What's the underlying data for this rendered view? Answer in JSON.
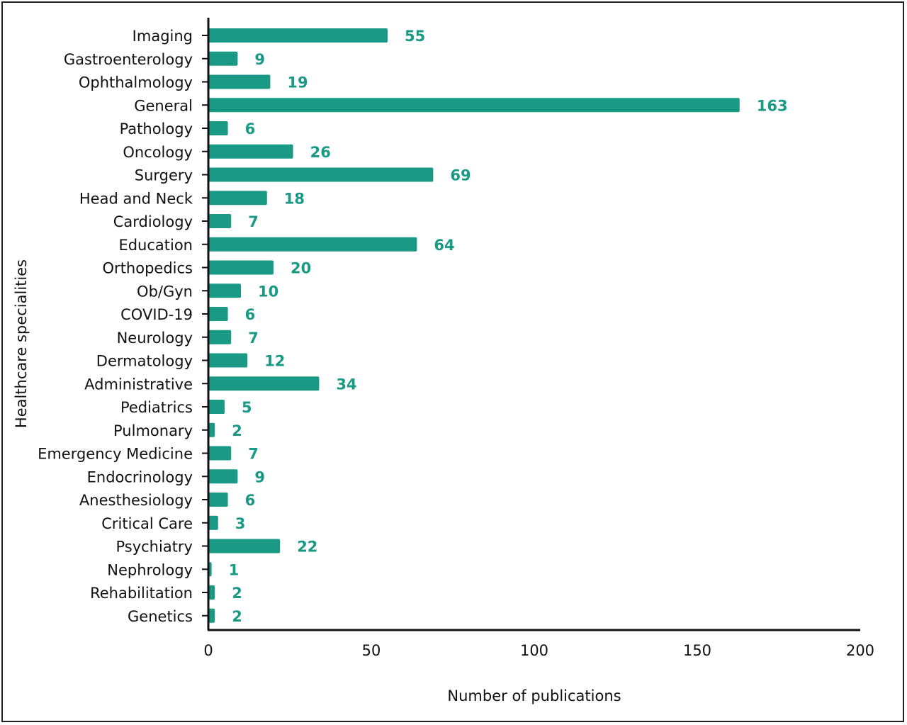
{
  "chart_data": {
    "type": "bar",
    "orientation": "horizontal",
    "title": "",
    "xlabel": "Number of publications",
    "ylabel": "Healthcare specialities",
    "xlim": [
      0,
      200
    ],
    "xticks": [
      0,
      50,
      100,
      150,
      200
    ],
    "grid": false,
    "bar_color": "#1a9985",
    "label_color": "#1a9985",
    "categories": [
      "Imaging",
      "Gastroenterology",
      "Ophthalmology",
      "General",
      "Pathology",
      "Oncology",
      "Surgery",
      "Head and Neck",
      "Cardiology",
      "Education",
      "Orthopedics",
      "Ob/Gyn",
      "COVID-19",
      "Neurology",
      "Dermatology",
      "Administrative",
      "Pediatrics",
      "Pulmonary",
      "Emergency Medicine",
      "Endocrinology",
      "Anesthesiology",
      "Critical Care",
      "Psychiatry",
      "Nephrology",
      "Rehabilitation",
      "Genetics"
    ],
    "values": [
      55,
      9,
      19,
      163,
      6,
      26,
      69,
      18,
      7,
      64,
      20,
      10,
      6,
      7,
      12,
      34,
      5,
      2,
      7,
      9,
      6,
      3,
      22,
      1,
      2,
      2
    ]
  }
}
